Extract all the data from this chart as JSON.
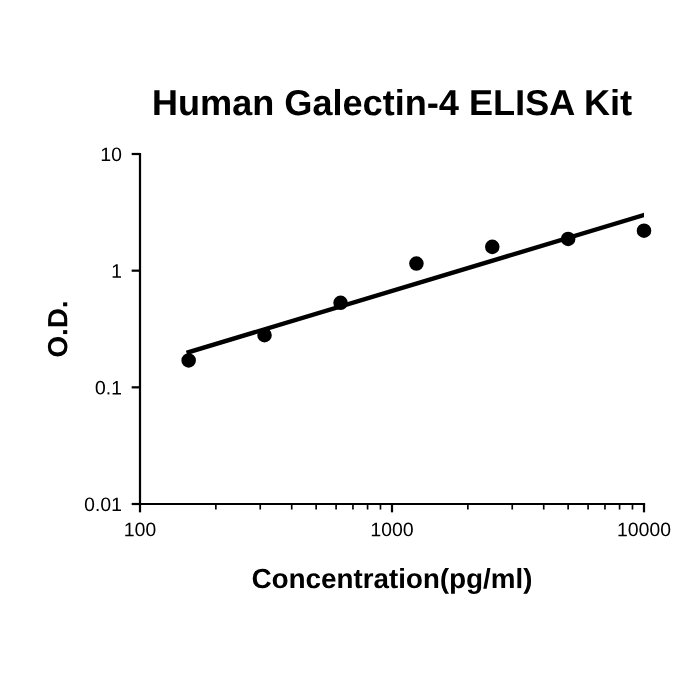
{
  "chart_data": {
    "type": "scatter",
    "title": "Human Galectin-4 ELISA Kit",
    "xlabel": "Concentration(pg/ml)",
    "ylabel": "O.D.",
    "x": [
      156,
      312,
      625,
      1250,
      2500,
      5000,
      10000
    ],
    "series": [
      {
        "color": "#000000",
        "marker": "circle",
        "values": [
          0.17,
          0.28,
          0.53,
          1.15,
          1.6,
          1.87,
          2.2
        ]
      },
      {
        "type": "line",
        "color": "#000000",
        "x": [
          156,
          10000
        ],
        "values": [
          0.2,
          3.0
        ],
        "line_style": "solid"
      }
    ],
    "log": "xy",
    "xlim": [
      100,
      10000
    ],
    "ylim": [
      0.01,
      10
    ],
    "xticks": [
      100,
      1000,
      10000
    ],
    "yticks": [
      0.01,
      0.1,
      1,
      10
    ],
    "grid": false,
    "legend": false
  }
}
